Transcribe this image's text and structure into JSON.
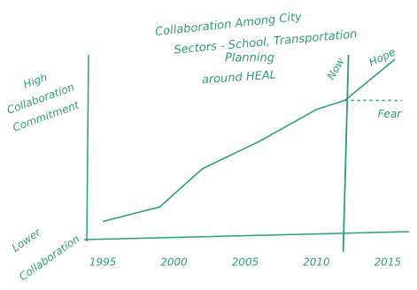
{
  "chart_data": {
    "type": "line",
    "title": [
      "Collaboration Among City",
      "Sectors - School, Transportation",
      "Planning",
      "around HEAL"
    ],
    "y_label_top": [
      "High",
      "Collaboration",
      "Commitment"
    ],
    "y_label_bottom": [
      "Lower",
      "Collaboration"
    ],
    "color": "#2f9e74",
    "x": [
      1995,
      1999,
      2002,
      2006,
      2010,
      2012
    ],
    "series": [
      {
        "values": [
          0.85,
          1.65,
          3.75,
          5.25,
          7,
          7.5
        ]
      },
      {
        "name": "Hope",
        "x": [
          2012,
          2015.5
        ],
        "values": [
          7.5,
          9.75
        ],
        "dashed": false
      },
      {
        "name": "Fear",
        "x": [
          2012,
          2016
        ],
        "values": [
          7.5,
          7.5
        ],
        "dashed": true
      }
    ],
    "now_line": {
      "label": "Now",
      "x": 2012
    },
    "xlim": [
      1994,
      2016.5
    ],
    "ylim": [
      0,
      10
    ],
    "xticks": [
      1995,
      2000,
      2005,
      2010,
      2015
    ]
  }
}
